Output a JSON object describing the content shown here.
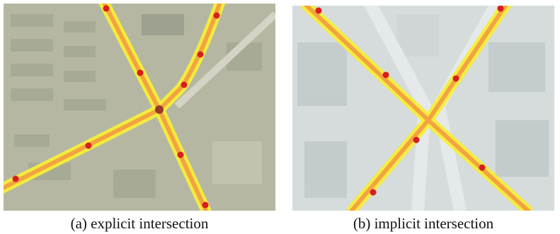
{
  "figures": [
    {
      "caption": "(a) explicit intersection"
    },
    {
      "caption": "(b) implicit intersection"
    }
  ]
}
